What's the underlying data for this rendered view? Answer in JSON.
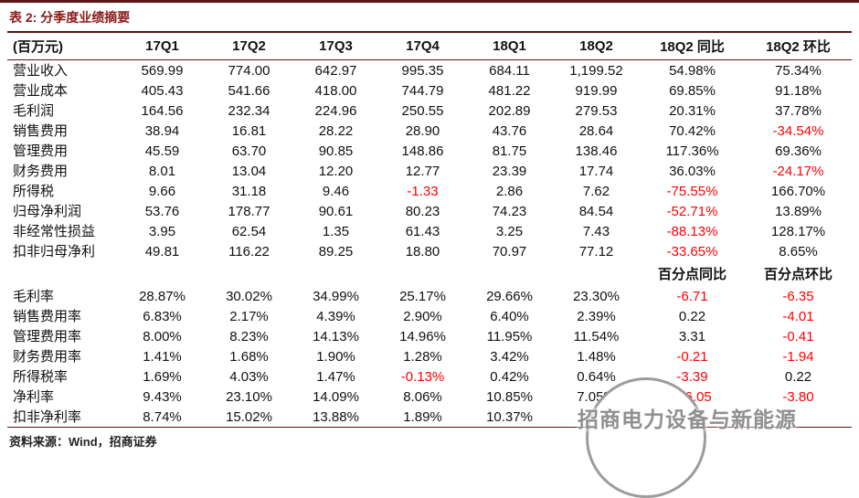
{
  "page": {
    "title": "表 2: 分季度业绩摘要",
    "source": "资料来源：Wind，招商证券"
  },
  "colors": {
    "accent": "#5a1616",
    "title_accent": "#8b1a1a",
    "negative": "#ff0000"
  },
  "watermark": {
    "text": "招商电力设备与新能源"
  },
  "table": {
    "header": [
      "(百万元)",
      "17Q1",
      "17Q2",
      "17Q3",
      "17Q4",
      "18Q1",
      "18Q2",
      "18Q2 同比",
      "18Q2 环比"
    ],
    "rows": [
      {
        "label": "营业收入",
        "values": [
          "569.99",
          "774.00",
          "642.97",
          "995.35",
          "684.11",
          "1,199.52",
          "54.98%",
          "75.34%"
        ]
      },
      {
        "label": "营业成本",
        "values": [
          "405.43",
          "541.66",
          "418.00",
          "744.79",
          "481.22",
          "919.99",
          "69.85%",
          "91.18%"
        ]
      },
      {
        "label": "毛利润",
        "values": [
          "164.56",
          "232.34",
          "224.96",
          "250.55",
          "202.89",
          "279.53",
          "20.31%",
          "37.78%"
        ]
      },
      {
        "label": "销售费用",
        "values": [
          "38.94",
          "16.81",
          "28.22",
          "28.90",
          "43.76",
          "28.64",
          "70.42%",
          "-34.54%"
        ]
      },
      {
        "label": "管理费用",
        "values": [
          "45.59",
          "63.70",
          "90.85",
          "148.86",
          "81.75",
          "138.46",
          "117.36%",
          "69.36%"
        ]
      },
      {
        "label": "财务费用",
        "values": [
          "8.01",
          "13.04",
          "12.20",
          "12.77",
          "23.39",
          "17.74",
          "36.03%",
          "-24.17%"
        ]
      },
      {
        "label": "所得税",
        "values": [
          "9.66",
          "31.18",
          "9.46",
          "-1.33",
          "2.86",
          "7.62",
          "-75.55%",
          "166.70%"
        ]
      },
      {
        "label": "归母净利润",
        "values": [
          "53.76",
          "178.77",
          "90.61",
          "80.23",
          "74.23",
          "84.54",
          "-52.71%",
          "13.89%"
        ]
      },
      {
        "label": "非经常性损益",
        "values": [
          "3.95",
          "62.54",
          "1.35",
          "61.43",
          "3.25",
          "7.43",
          "-88.13%",
          "128.17%"
        ]
      },
      {
        "label": "扣非归母净利",
        "values": [
          "49.81",
          "116.22",
          "89.25",
          "18.80",
          "70.97",
          "77.12",
          "-33.65%",
          "8.65%"
        ]
      },
      {
        "type": "separator",
        "label": "",
        "values": [
          "",
          "",
          "",
          "",
          "",
          "",
          "百分点同比",
          "百分点环比"
        ]
      },
      {
        "label": "毛利率",
        "values": [
          "28.87%",
          "30.02%",
          "34.99%",
          "25.17%",
          "29.66%",
          "23.30%",
          "-6.71",
          "-6.35"
        ]
      },
      {
        "label": "销售费用率",
        "values": [
          "6.83%",
          "2.17%",
          "4.39%",
          "2.90%",
          "6.40%",
          "2.39%",
          "0.22",
          "-4.01"
        ]
      },
      {
        "label": "管理费用率",
        "values": [
          "8.00%",
          "8.23%",
          "14.13%",
          "14.96%",
          "11.95%",
          "11.54%",
          "3.31",
          "-0.41"
        ]
      },
      {
        "label": "财务费用率",
        "values": [
          "1.41%",
          "1.68%",
          "1.90%",
          "1.28%",
          "3.42%",
          "1.48%",
          "-0.21",
          "-1.94"
        ]
      },
      {
        "label": "所得税率",
        "values": [
          "1.69%",
          "4.03%",
          "1.47%",
          "-0.13%",
          "0.42%",
          "0.64%",
          "-3.39",
          "0.22"
        ]
      },
      {
        "label": "净利率",
        "values": [
          "9.43%",
          "23.10%",
          "14.09%",
          "8.06%",
          "10.85%",
          "7.05%",
          "-16.05",
          "-3.80"
        ]
      },
      {
        "label": "扣非净利率",
        "values": [
          "8.74%",
          "15.02%",
          "13.88%",
          "1.89%",
          "10.37%",
          "",
          "",
          ""
        ]
      }
    ]
  }
}
